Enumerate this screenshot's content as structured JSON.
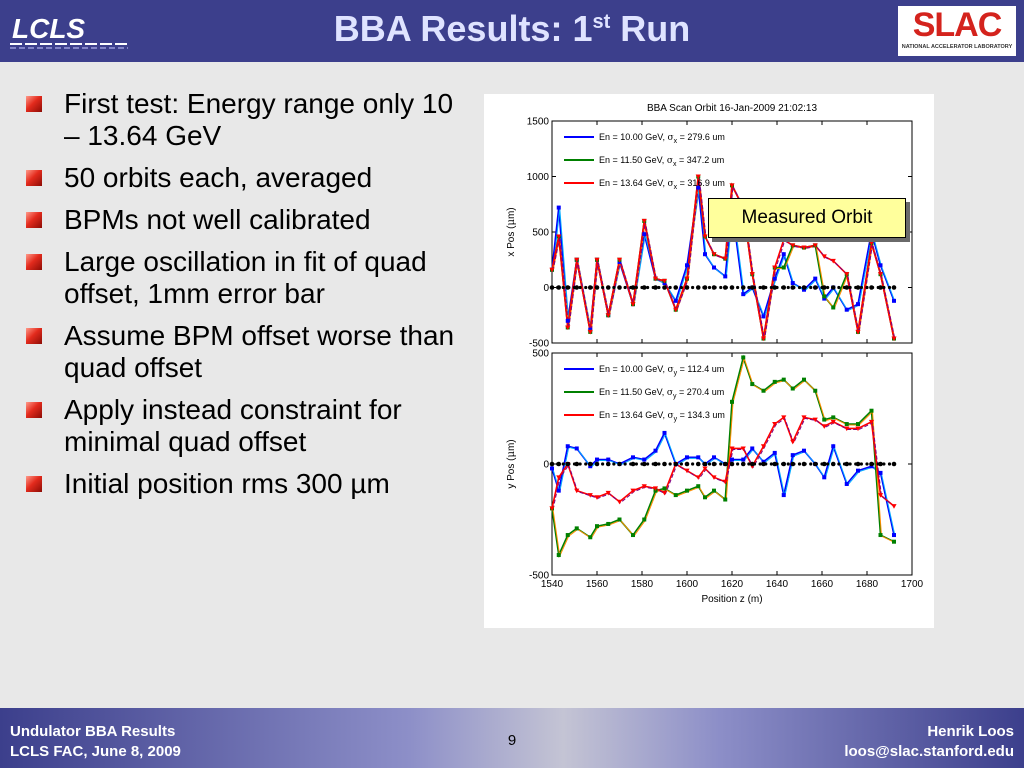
{
  "header": {
    "title_main": "BBA Results: 1",
    "title_sup": "st",
    "title_tail": " Run",
    "logo_left": "LCLS",
    "logo_right": "SLAC",
    "logo_right_sub": "NATIONAL ACCELERATOR LABORATORY"
  },
  "bullets": [
    "First test: Energy range only 10 – 13.64 GeV",
    "50 orbits each, averaged",
    "BPMs not well calibrated",
    "Large oscillation in fit of quad offset, 1mm error bar",
    "Assume BPM offset worse than quad offset",
    "Apply instead constraint for minimal quad offset",
    "Initial position rms 300 µm"
  ],
  "callout": "Measured Orbit",
  "footer": {
    "left_line1": "Undulator BBA Results",
    "left_line2": "LCLS FAC, June 8, 2009",
    "page": "9",
    "right_line1": "Henrik Loos",
    "right_line2": "loos@slac.stanford.edu"
  },
  "colors": {
    "header": "#3c3f8c",
    "series_blue": "#0000ff",
    "series_green": "#008000",
    "series_red": "#ff0000"
  },
  "chart_data": [
    {
      "type": "line",
      "title": "BBA Scan Orbit 16-Jan-2009 21:02:13",
      "ylabel_pre": "x Pos  (",
      "ylabel_greek": "μ",
      "ylabel_post": "m)",
      "xlim": [
        1540,
        1700
      ],
      "ylim": [
        -500,
        1500
      ],
      "yticks": [
        "-500",
        "0",
        "500",
        "1000",
        "1500"
      ],
      "legend_placement": "top-left",
      "legend": [
        {
          "en": "En =  10.00 GeV, ",
          "sub": "x",
          "val": " =  279.6 um"
        },
        {
          "en": "En =  11.50 GeV, ",
          "sub": "x",
          "val": " =  347.2 um"
        },
        {
          "en": "En =  13.64 GeV, ",
          "sub": "x",
          "val": " =  316.9 um"
        }
      ],
      "x": [
        1540,
        1543,
        1547,
        1551,
        1557,
        1560,
        1565,
        1570,
        1576,
        1581,
        1586,
        1590,
        1595,
        1600,
        1605,
        1608,
        1612,
        1617,
        1620,
        1625,
        1629,
        1634,
        1639,
        1643,
        1647,
        1652,
        1657,
        1661,
        1665,
        1671,
        1676,
        1682,
        1686,
        1692
      ],
      "series": [
        {
          "values": [
            160,
            720,
            -300,
            250,
            -380,
            250,
            -250,
            230,
            -150,
            480,
            80,
            40,
            -120,
            200,
            900,
            300,
            180,
            100,
            720,
            -60,
            0,
            -260,
            80,
            300,
            40,
            -20,
            80,
            -100,
            0,
            -200,
            -150,
            500,
            200,
            -120
          ]
        },
        {
          "values": [
            160,
            460,
            -360,
            250,
            -400,
            250,
            -250,
            250,
            -150,
            600,
            80,
            60,
            -200,
            80,
            1000,
            460,
            300,
            260,
            920,
            720,
            120,
            -460,
            180,
            180,
            380,
            360,
            380,
            -80,
            -180,
            120,
            -400,
            400,
            120,
            -460
          ]
        },
        {
          "values": [
            160,
            460,
            -360,
            250,
            -400,
            250,
            -250,
            250,
            -150,
            600,
            80,
            60,
            -200,
            80,
            1000,
            460,
            300,
            260,
            920,
            720,
            120,
            -460,
            180,
            430,
            380,
            360,
            380,
            280,
            240,
            120,
            -400,
            400,
            120,
            -460
          ]
        }
      ],
      "reference": {
        "values": [
          0,
          0,
          0,
          0,
          0,
          0,
          0,
          0,
          0,
          0,
          0,
          0,
          0,
          0,
          0,
          0,
          0,
          0,
          0,
          0,
          0,
          0,
          0,
          0,
          0,
          0,
          0,
          0,
          0,
          0,
          0,
          0,
          0,
          0
        ]
      }
    },
    {
      "type": "line",
      "ylabel_pre": "y Pos  (",
      "ylabel_greek": "μ",
      "ylabel_post": "m)",
      "xlabel": "Position z  (m)",
      "xlim": [
        1540,
        1700
      ],
      "ylim": [
        -500,
        500
      ],
      "xticks": [
        "1540",
        "1560",
        "1580",
        "1600",
        "1620",
        "1640",
        "1660",
        "1680",
        "1700"
      ],
      "yticks": [
        "-500",
        "0",
        "500"
      ],
      "legend_placement": "top-left",
      "legend": [
        {
          "en": "En =  10.00 GeV, ",
          "sub": "y",
          "val": " =  112.4 um"
        },
        {
          "en": "En =  11.50 GeV, ",
          "sub": "y",
          "val": " =  270.4 um"
        },
        {
          "en": "En =  13.64 GeV, ",
          "sub": "y",
          "val": " =  134.3 um"
        }
      ],
      "x": [
        1540,
        1543,
        1547,
        1551,
        1557,
        1560,
        1565,
        1570,
        1576,
        1581,
        1586,
        1590,
        1595,
        1600,
        1605,
        1608,
        1612,
        1617,
        1620,
        1625,
        1629,
        1634,
        1639,
        1643,
        1647,
        1652,
        1657,
        1661,
        1665,
        1671,
        1676,
        1682,
        1686,
        1692
      ],
      "series": [
        {
          "values": [
            -20,
            -120,
            80,
            70,
            -10,
            20,
            20,
            0,
            30,
            20,
            60,
            140,
            0,
            30,
            30,
            0,
            30,
            0,
            20,
            20,
            70,
            10,
            50,
            -140,
            40,
            60,
            0,
            -60,
            80,
            -90,
            -30,
            -10,
            -40,
            -320
          ]
        },
        {
          "values": [
            -200,
            -410,
            -320,
            -290,
            -330,
            -280,
            -270,
            -250,
            -320,
            -250,
            -120,
            -110,
            -140,
            -120,
            -100,
            -150,
            -120,
            -160,
            280,
            480,
            360,
            330,
            370,
            380,
            340,
            380,
            330,
            200,
            210,
            180,
            180,
            240,
            -320,
            -350
          ]
        },
        {
          "values": [
            -200,
            -60,
            0,
            -120,
            -140,
            -150,
            -130,
            -170,
            -120,
            -100,
            -110,
            -130,
            0,
            -30,
            -60,
            -20,
            -60,
            -80,
            70,
            70,
            -10,
            80,
            180,
            210,
            100,
            210,
            200,
            170,
            190,
            160,
            160,
            190,
            -140,
            -190
          ]
        }
      ],
      "reference": {
        "values": [
          0,
          0,
          0,
          0,
          0,
          0,
          0,
          0,
          0,
          0,
          0,
          0,
          0,
          0,
          0,
          0,
          0,
          0,
          0,
          0,
          0,
          0,
          0,
          0,
          0,
          0,
          0,
          0,
          0,
          0,
          0,
          0,
          0,
          0
        ]
      }
    }
  ]
}
